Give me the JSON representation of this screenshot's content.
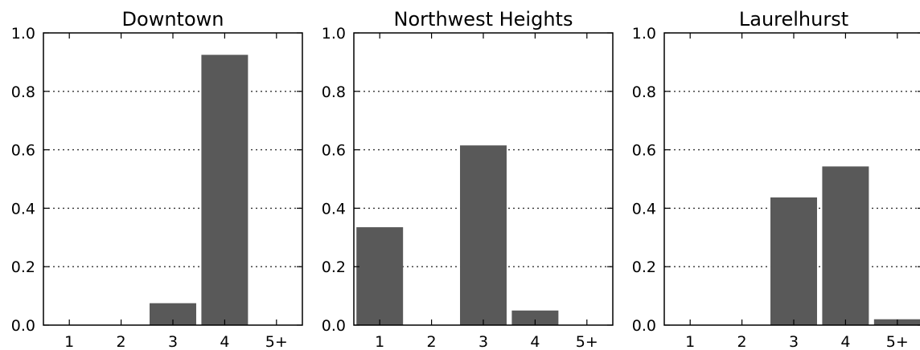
{
  "colors": {
    "bar": "#595959",
    "frame": "#000000",
    "grid": "#333333"
  },
  "chart_data": [
    {
      "type": "bar",
      "title": "Downtown",
      "categories": [
        "1",
        "2",
        "3",
        "4",
        "5+"
      ],
      "values": [
        0,
        0,
        0.075,
        0.925,
        0
      ],
      "ylim": [
        0,
        1.0
      ],
      "yticks": [
        "0.0",
        "0.2",
        "0.4",
        "0.6",
        "0.8",
        "1.0"
      ],
      "grid": "horizontal dotted"
    },
    {
      "type": "bar",
      "title": "Northwest Heights",
      "categories": [
        "1",
        "2",
        "3",
        "4",
        "5+"
      ],
      "values": [
        0.335,
        0,
        0.615,
        0.05,
        0
      ],
      "ylim": [
        0,
        1.0
      ],
      "yticks": [
        "0.0",
        "0.2",
        "0.4",
        "0.6",
        "0.8",
        "1.0"
      ],
      "grid": "horizontal dotted"
    },
    {
      "type": "bar",
      "title": "Laurelhurst",
      "categories": [
        "1",
        "2",
        "3",
        "4",
        "5+"
      ],
      "values": [
        0,
        0,
        0.437,
        0.543,
        0.02
      ],
      "ylim": [
        0,
        1.0
      ],
      "yticks": [
        "0.0",
        "0.2",
        "0.4",
        "0.6",
        "0.8",
        "1.0"
      ],
      "grid": "horizontal dotted"
    }
  ]
}
